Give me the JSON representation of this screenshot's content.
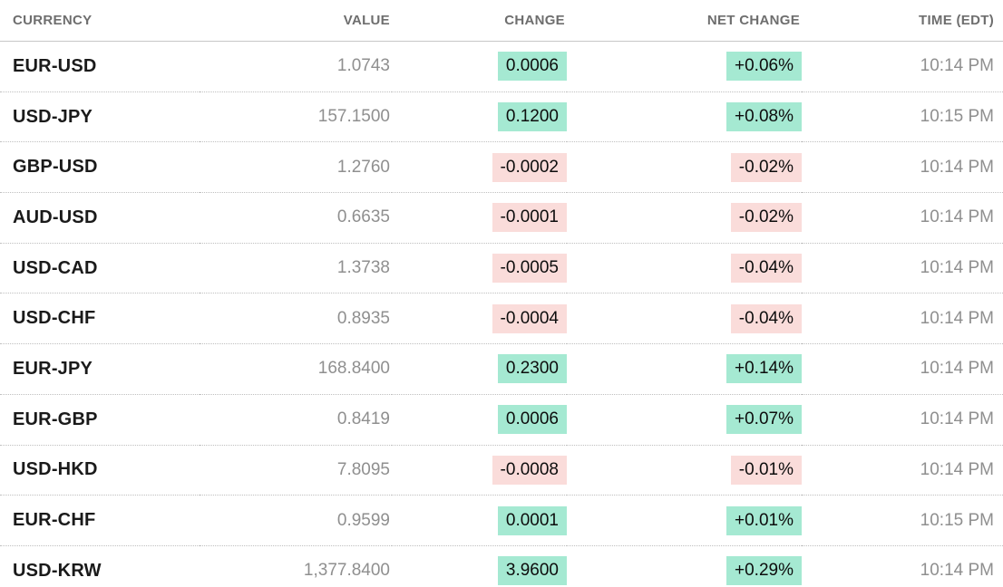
{
  "table": {
    "columns": [
      "CURRENCY",
      "VALUE",
      "CHANGE",
      "NET CHANGE",
      "TIME (EDT)"
    ],
    "rows": [
      {
        "currency": "EUR-USD",
        "value": "1.0743",
        "change": "0.0006",
        "net_change": "+0.06%",
        "time": "10:14 PM",
        "direction": "up"
      },
      {
        "currency": "USD-JPY",
        "value": "157.1500",
        "change": "0.1200",
        "net_change": "+0.08%",
        "time": "10:15 PM",
        "direction": "up"
      },
      {
        "currency": "GBP-USD",
        "value": "1.2760",
        "change": "-0.0002",
        "net_change": "-0.02%",
        "time": "10:14 PM",
        "direction": "down"
      },
      {
        "currency": "AUD-USD",
        "value": "0.6635",
        "change": "-0.0001",
        "net_change": "-0.02%",
        "time": "10:14 PM",
        "direction": "down"
      },
      {
        "currency": "USD-CAD",
        "value": "1.3738",
        "change": "-0.0005",
        "net_change": "-0.04%",
        "time": "10:14 PM",
        "direction": "down"
      },
      {
        "currency": "USD-CHF",
        "value": "0.8935",
        "change": "-0.0004",
        "net_change": "-0.04%",
        "time": "10:14 PM",
        "direction": "down"
      },
      {
        "currency": "EUR-JPY",
        "value": "168.8400",
        "change": "0.2300",
        "net_change": "+0.14%",
        "time": "10:14 PM",
        "direction": "up"
      },
      {
        "currency": "EUR-GBP",
        "value": "0.8419",
        "change": "0.0006",
        "net_change": "+0.07%",
        "time": "10:14 PM",
        "direction": "up"
      },
      {
        "currency": "USD-HKD",
        "value": "7.8095",
        "change": "-0.0008",
        "net_change": "-0.01%",
        "time": "10:14 PM",
        "direction": "down"
      },
      {
        "currency": "EUR-CHF",
        "value": "0.9599",
        "change": "0.0001",
        "net_change": "+0.01%",
        "time": "10:15 PM",
        "direction": "up"
      },
      {
        "currency": "USD-KRW",
        "value": "1,377.8400",
        "change": "3.9600",
        "net_change": "+0.29%",
        "time": "10:14 PM",
        "direction": "up"
      }
    ]
  },
  "colors": {
    "positive_bg": "#a5e9d2",
    "negative_bg": "#fadcda",
    "pill_text": "#0d0d0d",
    "header_color": "#6e6e6e",
    "pair_color": "#1a1a1a",
    "muted_color": "#8f8f8f",
    "header_border": "#c7c7c7",
    "row_border": "#bfbfbf"
  }
}
